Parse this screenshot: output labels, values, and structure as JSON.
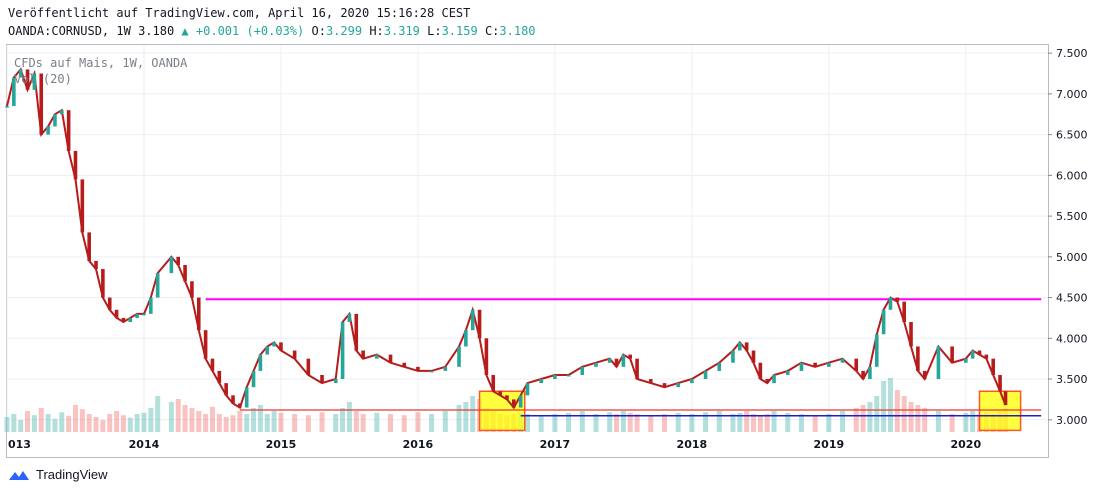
{
  "header": {
    "published": "Veröffentlicht auf TradingView.com, April 16, 2020 15:16:28 CEST",
    "symbol": "OANDA:CORNUSD, 1W",
    "last": "3.180",
    "change": "+0.001 (+0.03%)",
    "open_label": "O:",
    "open": "3.299",
    "high_label": "H:",
    "high": "3.319",
    "low_label": "L:",
    "low": "3.159",
    "close_label": "C:",
    "close": "3.180"
  },
  "overlay": {
    "title": "CFDs auf Mais, 1W, OANDA",
    "indicator": "Vol (20)"
  },
  "footer": {
    "brand": "TradingView"
  },
  "colors": {
    "up": "#26a69a",
    "down": "#ef5350",
    "line": "#b71c1c",
    "resistance": "#ff00ff",
    "support_red": "#e53935",
    "support_blue": "#1e1ec8",
    "highlight_fill": "#ffff00",
    "highlight_border": "#ff5722"
  },
  "chart_data": {
    "type": "line",
    "xaxis_ticks": [
      "013",
      "2014",
      "2015",
      "2016",
      "2017",
      "2018",
      "2019",
      "2020"
    ],
    "yaxis_ticks": [
      "7.500",
      "7.000",
      "6.500",
      "6.000",
      "5.500",
      "5.000",
      "4.500",
      "4.000",
      "3.500",
      "3.000"
    ],
    "ylim": [
      2.85,
      7.6
    ],
    "xlim": [
      2013.0,
      2020.6
    ],
    "grid": true,
    "series": [
      {
        "x": [
          2013.0,
          2013.05,
          2013.1,
          2013.15,
          2013.2,
          2013.25,
          2013.3,
          2013.35,
          2013.4,
          2013.45,
          2013.5,
          2013.55,
          2013.6,
          2013.65,
          2013.7,
          2013.75,
          2013.8,
          2013.85,
          2013.9,
          2013.95,
          2014.0,
          2014.05,
          2014.1,
          2014.2,
          2014.25,
          2014.3,
          2014.35,
          2014.4,
          2014.45,
          2014.5,
          2014.55,
          2014.6,
          2014.65,
          2014.7,
          2014.75,
          2014.8,
          2014.85,
          2014.9,
          2014.95,
          2015.0,
          2015.1,
          2015.2,
          2015.3,
          2015.4,
          2015.45,
          2015.5,
          2015.55,
          2015.6,
          2015.7,
          2015.8,
          2015.9,
          2016.0,
          2016.1,
          2016.2,
          2016.3,
          2016.35,
          2016.4,
          2016.45,
          2016.5,
          2016.55,
          2016.6,
          2016.65,
          2016.7,
          2016.75,
          2016.8,
          2016.9,
          2017.0,
          2017.1,
          2017.2,
          2017.3,
          2017.4,
          2017.45,
          2017.5,
          2017.55,
          2017.6,
          2017.7,
          2017.8,
          2017.9,
          2018.0,
          2018.1,
          2018.2,
          2018.3,
          2018.35,
          2018.4,
          2018.45,
          2018.5,
          2018.55,
          2018.6,
          2018.7,
          2018.8,
          2018.9,
          2019.0,
          2019.1,
          2019.2,
          2019.25,
          2019.3,
          2019.35,
          2019.4,
          2019.45,
          2019.5,
          2019.55,
          2019.6,
          2019.65,
          2019.7,
          2019.8,
          2019.9,
          2020.0,
          2020.05,
          2020.1,
          2020.15,
          2020.2,
          2020.25,
          2020.29
        ],
        "y": [
          6.85,
          7.2,
          7.3,
          7.05,
          7.25,
          6.5,
          6.6,
          6.75,
          6.8,
          6.3,
          5.95,
          5.3,
          4.95,
          4.85,
          4.5,
          4.35,
          4.25,
          4.2,
          4.25,
          4.3,
          4.3,
          4.5,
          4.8,
          5.0,
          4.9,
          4.7,
          4.5,
          4.1,
          3.75,
          3.6,
          3.45,
          3.3,
          3.2,
          3.15,
          3.4,
          3.6,
          3.8,
          3.9,
          3.95,
          3.85,
          3.75,
          3.55,
          3.45,
          3.5,
          4.2,
          4.3,
          3.85,
          3.75,
          3.8,
          3.7,
          3.65,
          3.6,
          3.6,
          3.65,
          3.9,
          4.1,
          4.35,
          4.0,
          3.55,
          3.35,
          3.3,
          3.25,
          3.15,
          3.3,
          3.45,
          3.5,
          3.55,
          3.55,
          3.65,
          3.7,
          3.75,
          3.65,
          3.8,
          3.75,
          3.5,
          3.45,
          3.4,
          3.45,
          3.5,
          3.6,
          3.7,
          3.85,
          3.95,
          3.85,
          3.7,
          3.5,
          3.45,
          3.55,
          3.6,
          3.7,
          3.65,
          3.7,
          3.75,
          3.6,
          3.5,
          3.65,
          4.05,
          4.35,
          4.5,
          4.45,
          4.2,
          3.9,
          3.6,
          3.5,
          3.9,
          3.7,
          3.75,
          3.85,
          3.8,
          3.75,
          3.55,
          3.35,
          3.18
        ]
      }
    ],
    "volume": [
      0.25,
      0.3,
      0.2,
      0.35,
      0.28,
      0.4,
      0.3,
      0.22,
      0.33,
      0.27,
      0.45,
      0.38,
      0.3,
      0.25,
      0.2,
      0.3,
      0.35,
      0.28,
      0.24,
      0.3,
      0.32,
      0.4,
      0.6,
      0.5,
      0.55,
      0.45,
      0.4,
      0.35,
      0.3,
      0.42,
      0.3,
      0.25,
      0.28,
      0.35,
      0.3,
      0.4,
      0.45,
      0.3,
      0.35,
      0.32,
      0.3,
      0.28,
      0.33,
      0.3,
      0.4,
      0.5,
      0.35,
      0.3,
      0.32,
      0.3,
      0.28,
      0.33,
      0.3,
      0.35,
      0.45,
      0.5,
      0.6,
      0.55,
      0.4,
      0.35,
      0.3,
      0.28,
      0.3,
      0.32,
      0.3,
      0.28,
      0.3,
      0.32,
      0.35,
      0.3,
      0.33,
      0.3,
      0.35,
      0.32,
      0.3,
      0.28,
      0.3,
      0.32,
      0.3,
      0.33,
      0.35,
      0.3,
      0.32,
      0.35,
      0.3,
      0.28,
      0.3,
      0.35,
      0.32,
      0.3,
      0.28,
      0.3,
      0.35,
      0.4,
      0.45,
      0.5,
      0.6,
      0.85,
      0.9,
      0.7,
      0.6,
      0.5,
      0.45,
      0.4,
      0.35,
      0.3,
      0.32,
      0.35,
      0.3,
      0.33,
      0.3,
      0.35,
      0.4
    ],
    "annotations": {
      "resistance": {
        "y": 4.48,
        "x_from": 2014.45,
        "x_to": 2020.55
      },
      "support_red": {
        "y": 3.12,
        "x_from": 2014.7,
        "x_to": 2020.55
      },
      "support_blue": {
        "y": 3.05,
        "x_from": 2016.75,
        "x_to": 2020.55
      },
      "boxes": [
        {
          "x_from": 2016.45,
          "x_to": 2016.78,
          "y_from": 2.87,
          "y_to": 3.35
        },
        {
          "x_from": 2020.1,
          "x_to": 2020.4,
          "y_from": 2.87,
          "y_to": 3.35
        }
      ]
    }
  }
}
